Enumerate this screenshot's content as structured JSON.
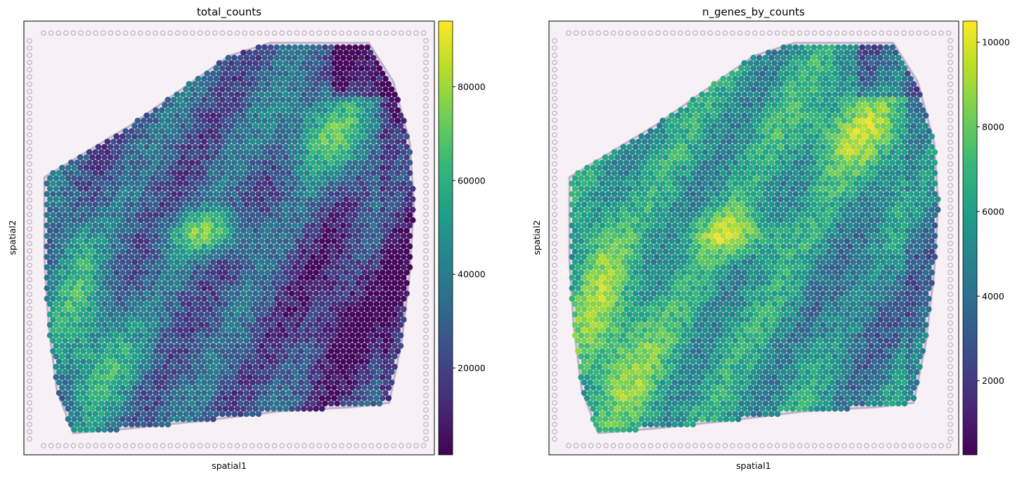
{
  "chart_data": [
    {
      "type": "scatter",
      "title": "total_counts",
      "xlabel": "spatial1",
      "ylabel": "spatial2",
      "colormap": "viridis",
      "colorbar": {
        "ticks": [
          20000,
          40000,
          60000,
          80000
        ],
        "range": [
          1500,
          94000
        ]
      },
      "grid": false,
      "series": [
        {
          "field": "total_counts",
          "hotspots": [
            {
              "where": "upper-right tissue band",
              "value": 72000
            },
            {
              "where": "center-left streak",
              "value": 85000
            },
            {
              "where": "lower-left corner",
              "value": 65000
            }
          ],
          "lowspots": [
            {
              "where": "top-right lobe",
              "value": 4000
            },
            {
              "where": "right column",
              "value": 5000
            }
          ]
        }
      ]
    },
    {
      "type": "scatter",
      "title": "n_genes_by_counts",
      "xlabel": "spatial1",
      "ylabel": "spatial2",
      "colormap": "viridis",
      "colorbar": {
        "ticks": [
          2000,
          4000,
          6000,
          8000,
          10000
        ],
        "range": [
          250,
          10500
        ]
      },
      "grid": false,
      "series": [
        {
          "field": "n_genes_by_counts",
          "hotspots": [
            {
              "where": "upper-center band",
              "value": 9500
            },
            {
              "where": "center-left streak",
              "value": 10000
            },
            {
              "where": "lower-left corner",
              "value": 9300
            }
          ],
          "lowspots": [
            {
              "where": "top-right lobe",
              "value": 3500
            },
            {
              "where": "right column",
              "value": 3200
            }
          ]
        }
      ]
    }
  ],
  "colors": {
    "viridis": [
      "#440154",
      "#482878",
      "#3e4989",
      "#31688e",
      "#26828e",
      "#1f9e89",
      "#35b779",
      "#6ece58",
      "#b5de2b",
      "#fde725"
    ],
    "tissue_background": "#f7f0f4",
    "fiducial": "#c4b9c8",
    "tissue_edge": "#8e7aa8"
  }
}
